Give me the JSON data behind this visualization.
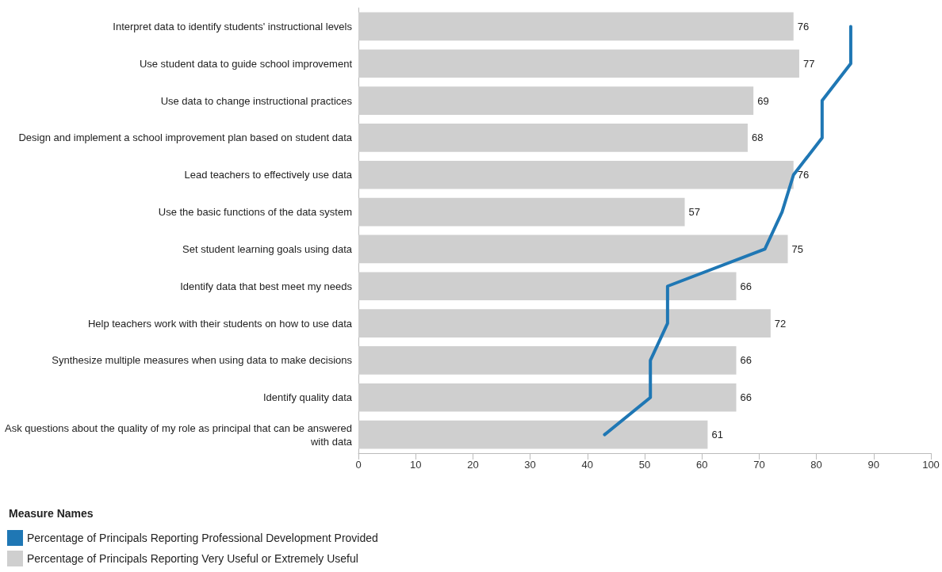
{
  "chart_data": {
    "type": "bar",
    "orientation": "horizontal",
    "categories": [
      "Interpret data to identify students' instructional levels",
      "Use student data to guide school improvement",
      "Use data to change instructional practices",
      "Design and implement a school improvement plan based on student data",
      "Lead teachers to effectively use data",
      "Use the basic functions of the data system",
      "Set student learning goals using data",
      "Identify data that best meet my needs",
      "Help teachers work with their students on how to use data",
      "Synthesize multiple measures when using data to make decisions",
      "Identify quality data",
      "Ask questions about the quality of my role as principal that can be answered with data"
    ],
    "series": [
      {
        "name": "Percentage of Principals Reporting Professional Development Provided",
        "type": "line",
        "color": "#1f77b4",
        "values": [
          86,
          86,
          81,
          81,
          76,
          74,
          71,
          54,
          54,
          51,
          51,
          43
        ]
      },
      {
        "name": "Percentage of Principals Reporting Very Useful or Extremely Useful",
        "color": "#cfcfcf",
        "values": [
          76,
          77,
          69,
          68,
          76,
          57,
          75,
          66,
          72,
          66,
          66,
          61
        ],
        "value_labels": [
          "76",
          "77",
          "69",
          "68",
          "76",
          "57",
          "75",
          "66",
          "72",
          "66",
          "66",
          "61"
        ]
      }
    ],
    "xlim": [
      0,
      100
    ],
    "xticks": [
      0,
      10,
      20,
      30,
      40,
      50,
      60,
      70,
      80,
      90,
      100
    ],
    "legend_title": "Measure Names",
    "legend": "bottom left",
    "grid": false,
    "marker": "none",
    "line_style": "solid"
  }
}
